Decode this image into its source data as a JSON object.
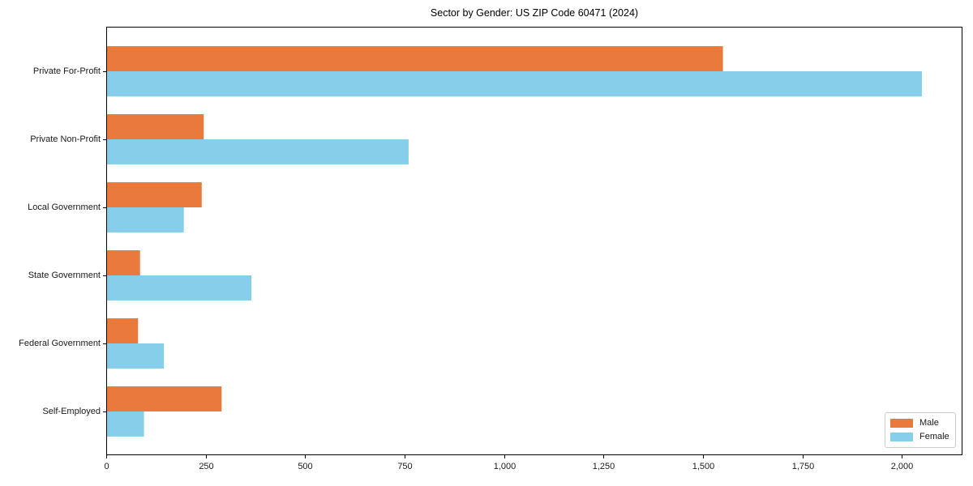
{
  "chart_data": {
    "type": "bar",
    "orientation": "horizontal",
    "title": "Sector by Gender: US ZIP Code 60471 (2024)",
    "categories": [
      "Private For-Profit",
      "Private Non-Profit",
      "Local Government",
      "State Government",
      "Federal Government",
      "Self-Employed"
    ],
    "series": [
      {
        "name": "Male",
        "color": "#ea7a3c",
        "values": [
          1550,
          245,
          240,
          85,
          80,
          290
        ]
      },
      {
        "name": "Female",
        "color": "#87ceeb",
        "values": [
          2050,
          760,
          195,
          365,
          145,
          95
        ]
      }
    ],
    "xlabel": "",
    "ylabel": "",
    "xlim": [
      0,
      2152
    ],
    "xticks": [
      0,
      250,
      500,
      750,
      1000,
      1250,
      1500,
      1750,
      2000
    ],
    "xtick_labels": [
      "0",
      "250",
      "500",
      "750",
      "1,000",
      "1,250",
      "1,500",
      "1,750",
      "2,000"
    ],
    "grid": false,
    "legend": {
      "position": "lower right",
      "entries": [
        "Male",
        "Female"
      ]
    }
  }
}
